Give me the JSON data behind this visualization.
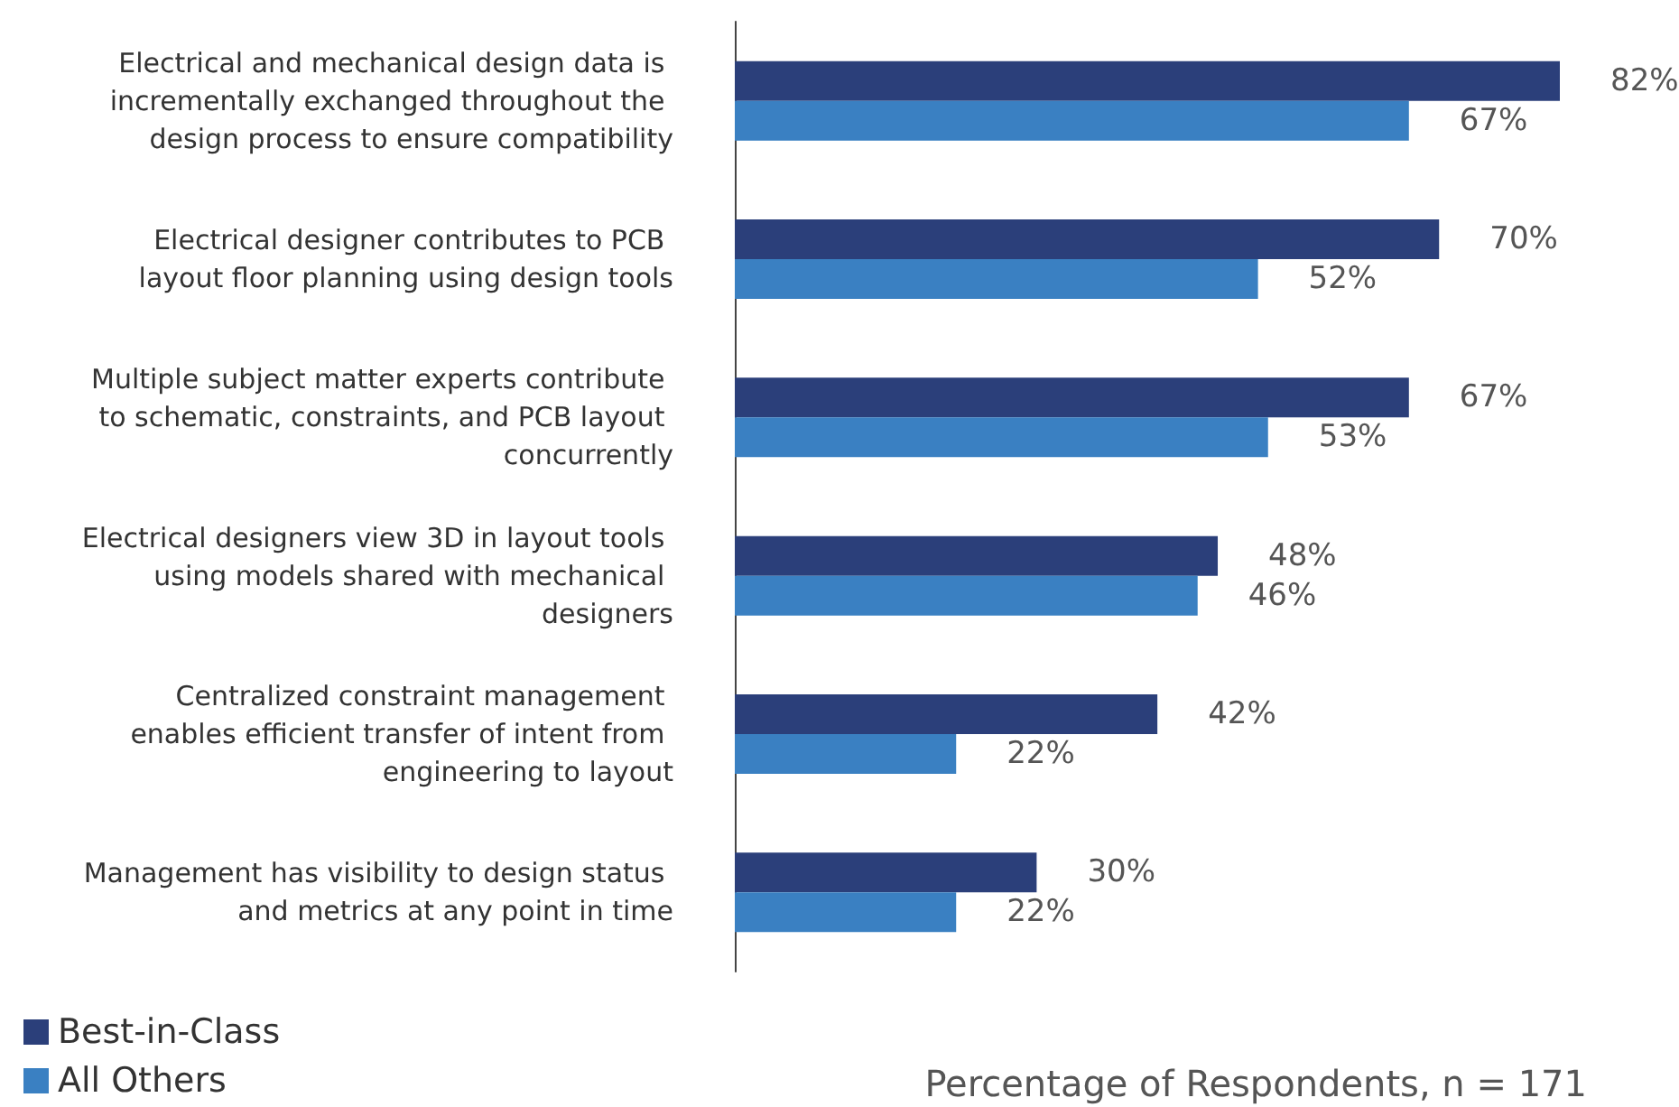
{
  "chart_data": {
    "type": "bar",
    "orientation": "horizontal",
    "xlabel": "Percentage of Respondents, n = 171",
    "categories": [
      "Electrical and mechanical design data is incrementally exchanged throughout the design process to ensure compatibility",
      "Electrical designer contributes to PCB layout floor planning using design tools",
      "Multiple subject matter experts contribute to schematic, constraints, and PCB layout concurrently",
      "Electrical designers view 3D in layout tools using models shared with mechanical designers",
      "Centralized constraint management enables efficient transfer of intent from engineering to layout",
      "Management has visibility to design status and metrics at any point in time"
    ],
    "series": [
      {
        "name": "Best-in-Class",
        "color": "#2b3f7a",
        "values": [
          82,
          70,
          67,
          48,
          42,
          30
        ],
        "value_labels": [
          "82%",
          "70%",
          "67%",
          "48%",
          "42%",
          "30%"
        ]
      },
      {
        "name": "All Others",
        "color": "#3a80c2",
        "values": [
          67,
          52,
          53,
          46,
          22,
          22
        ],
        "value_labels": [
          "67%",
          "52%",
          "53%",
          "46%",
          "22%",
          "22%"
        ]
      }
    ],
    "legend": "bottom left",
    "grid": false
  }
}
